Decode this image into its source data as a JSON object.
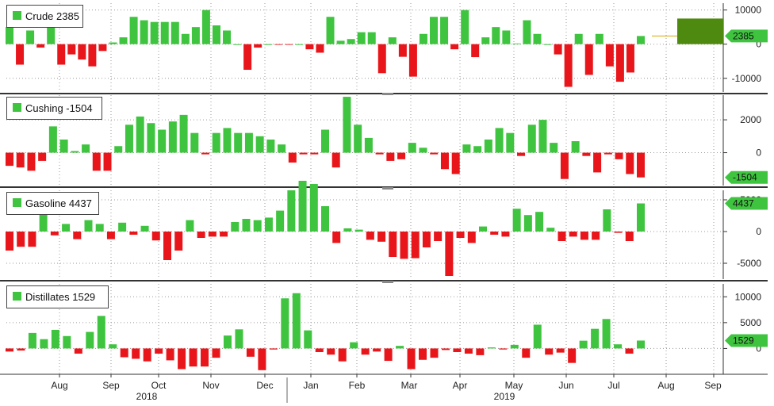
{
  "colors": {
    "positive": "#3fc43f",
    "negative": "#e8161b",
    "last_label_bg": "#3fc43f",
    "annotation_box": "#4f8a10",
    "panel_border": "#333333",
    "grid": "#9a9a9a"
  },
  "chart_data": [
    {
      "type": "bar",
      "legend_label": "Crude",
      "last_value": 2385,
      "last_label": "2385",
      "yticks": [
        10000,
        0,
        -10000
      ],
      "ylim": [
        -14000,
        12000
      ],
      "values": [
        5000,
        -6000,
        4000,
        -1000,
        6000,
        -6000,
        -3000,
        -4500,
        -6500,
        -2000,
        500,
        2000,
        8000,
        7000,
        6500,
        6500,
        6500,
        3000,
        5000,
        10000,
        5500,
        4000,
        0,
        -7500,
        -1000,
        0,
        -200,
        -200,
        0,
        -1500,
        -2500,
        8000,
        1000,
        1500,
        3500,
        3500,
        -8500,
        2000,
        -3700,
        -9500,
        3000,
        8000,
        8000,
        -1500,
        10000,
        -3800,
        2000,
        5000,
        4000,
        200,
        7000,
        3000,
        0,
        -3000,
        -12500,
        3000,
        -9000,
        3000,
        -6500,
        -11000,
        -8300,
        2385
      ]
    },
    {
      "type": "bar",
      "legend_label": "Cushing",
      "last_value": -1504,
      "last_label": "-1504",
      "yticks": [
        2000,
        0
      ],
      "ylim": [
        -2000,
        3500
      ],
      "values": [
        -800,
        -900,
        -1100,
        -500,
        1600,
        800,
        100,
        500,
        -1100,
        -1100,
        400,
        1700,
        2200,
        1800,
        1400,
        1900,
        2300,
        1200,
        -100,
        1200,
        1500,
        1200,
        1200,
        1000,
        800,
        500,
        -600,
        -100,
        -100,
        1400,
        -900,
        3400,
        1700,
        900,
        -100,
        -500,
        -400,
        600,
        300,
        -100,
        -1000,
        -1300,
        500,
        400,
        800,
        1500,
        1200,
        -200,
        1700,
        2000,
        600,
        -1600,
        700,
        -200,
        -1200,
        -100,
        -400,
        -1300,
        -1504
      ]
    },
    {
      "type": "bar",
      "legend_label": "Gasoline",
      "last_value": 4437,
      "last_label": "4437",
      "yticks": [
        5000,
        0,
        -5000
      ],
      "ylim": [
        -7500,
        6500
      ],
      "values": [
        -3000,
        -2400,
        -2400,
        2800,
        -600,
        1200,
        -1200,
        1800,
        1200,
        -1200,
        1400,
        -500,
        900,
        -1400,
        -4500,
        -3000,
        1800,
        -1000,
        -800,
        -800,
        1500,
        2000,
        1800,
        2200,
        3300,
        6500,
        8000,
        7500,
        4000,
        -1800,
        500,
        300,
        -1300,
        -1600,
        -4000,
        -4300,
        -4200,
        -2500,
        -1500,
        -7000,
        -1000,
        -1800,
        800,
        -500,
        -800,
        3600,
        2600,
        3100,
        600,
        -1500,
        -800,
        -1300,
        -1300,
        3500,
        -200,
        -1500,
        4437
      ]
    },
    {
      "type": "bar",
      "legend_label": "Distillates",
      "last_value": 1529,
      "last_label": "1529",
      "yticks": [
        10000,
        5000,
        0
      ],
      "ylim": [
        -5000,
        12500
      ],
      "values": [
        -600,
        -400,
        3000,
        1800,
        3600,
        2400,
        -1000,
        3200,
        6300,
        800,
        -1700,
        -2000,
        -2500,
        -1000,
        -2300,
        -4000,
        -3500,
        -3500,
        -1800,
        2500,
        3700,
        -1600,
        -4200,
        -200,
        9700,
        10700,
        3500,
        -700,
        -1200,
        -2500,
        1200,
        -1200,
        -600,
        -2400,
        500,
        -4000,
        -2200,
        -1800,
        -300,
        -700,
        -1000,
        -1300,
        200,
        -200,
        700,
        -1800,
        4600,
        -1200,
        -800,
        -2800,
        1500,
        3800,
        5700,
        800,
        -1000,
        1529
      ]
    }
  ],
  "x_axis": {
    "months": [
      "Aug",
      "Sep",
      "Oct",
      "Nov",
      "Dec",
      "Jan",
      "Feb",
      "Mar",
      "Apr",
      "May",
      "Jun",
      "Jul",
      "Aug",
      "Sep"
    ],
    "years": [
      "2018",
      "2019"
    ]
  }
}
